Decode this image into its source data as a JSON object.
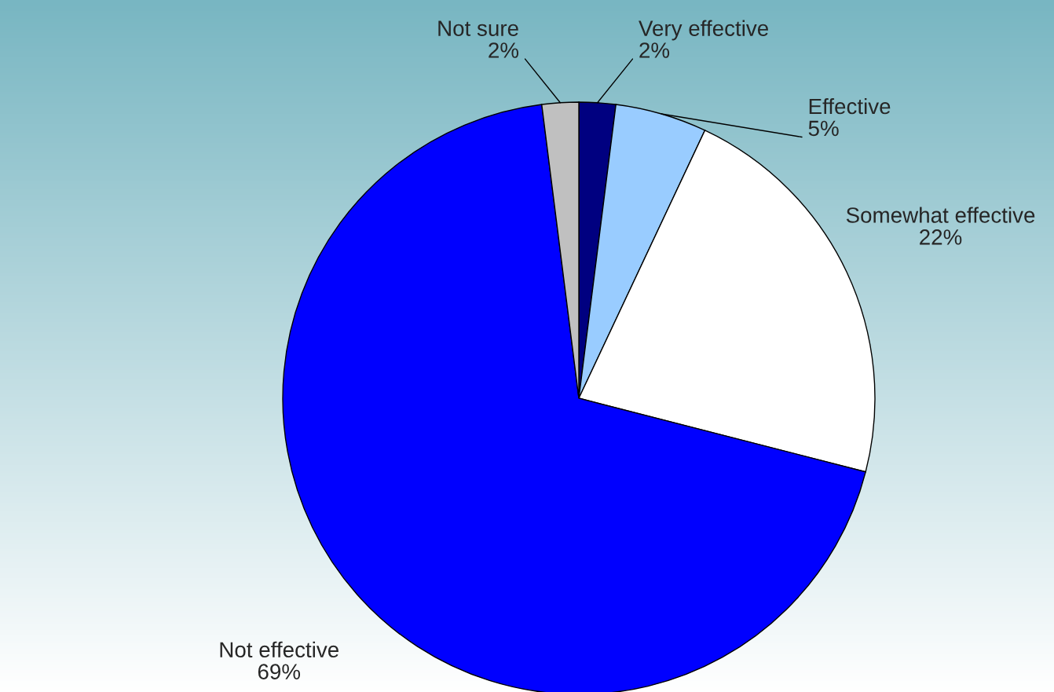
{
  "chart_data": {
    "type": "pie",
    "categories": [
      "Very effective",
      "Effective",
      "Somewhat effective",
      "Not effective",
      "Not sure"
    ],
    "values": [
      2,
      5,
      22,
      69,
      2
    ],
    "value_labels": [
      "2%",
      "5%",
      "22%",
      "69%",
      "2%"
    ],
    "colors": [
      "#000080",
      "#99ccff",
      "#ffffff",
      "#0000ff",
      "#c0c0c0"
    ],
    "legend": false
  }
}
